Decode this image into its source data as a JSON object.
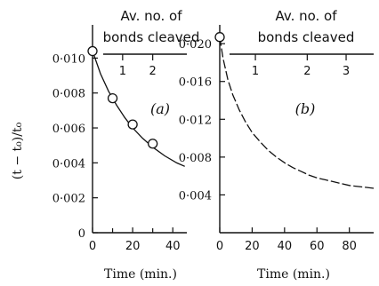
{
  "ylabel": "(t − t₀)/t₀",
  "chart_data": [
    {
      "type": "line",
      "panel_label": "(a)",
      "xlabel": "Time (min.)",
      "xlim": [
        0,
        47
      ],
      "ylim": [
        0,
        0.0118
      ],
      "x_ticks": [
        0,
        20,
        40
      ],
      "x_minor_ticks": [
        10,
        30
      ],
      "y_ticks": [
        0,
        0.002,
        0.004,
        0.006,
        0.008,
        0.01
      ],
      "y_tick_labels": [
        "0",
        "0·002",
        "0·004",
        "0·006",
        "0·008",
        "0·010"
      ],
      "top_axis": {
        "label_line1": "Av. no. of",
        "label_line2": "bonds cleaved",
        "ticks": [
          {
            "value": 1,
            "x": 15
          },
          {
            "value": 2,
            "x": 30
          }
        ]
      },
      "points": [
        {
          "x": 0,
          "y": 0.0104
        },
        {
          "x": 10,
          "y": 0.0077
        },
        {
          "x": 20,
          "y": 0.0062
        },
        {
          "x": 30,
          "y": 0.0051
        }
      ],
      "curve": [
        {
          "x": 0,
          "y": 0.0104
        },
        {
          "x": 4,
          "y": 0.0091
        },
        {
          "x": 8,
          "y": 0.0081
        },
        {
          "x": 12,
          "y": 0.0073
        },
        {
          "x": 16,
          "y": 0.0066
        },
        {
          "x": 20,
          "y": 0.006
        },
        {
          "x": 25,
          "y": 0.0054
        },
        {
          "x": 30,
          "y": 0.0049
        },
        {
          "x": 36,
          "y": 0.0044
        },
        {
          "x": 42,
          "y": 0.004
        },
        {
          "x": 46,
          "y": 0.0038
        }
      ]
    },
    {
      "type": "line",
      "panel_label": "(b)",
      "xlabel": "Time (min.)",
      "xlim": [
        0,
        95
      ],
      "ylim": [
        0,
        0.0218
      ],
      "x_ticks": [
        0,
        20,
        40,
        60,
        80
      ],
      "y_ticks": [
        0.004,
        0.008,
        0.012,
        0.016,
        0.02
      ],
      "y_tick_labels": [
        "0·004",
        "0·008",
        "0·012",
        "0·016",
        "0·020"
      ],
      "top_axis": {
        "label_line1": "Av. no. of",
        "label_line2": "bonds cleaved",
        "ticks": [
          {
            "value": 1,
            "x": 22
          },
          {
            "value": 2,
            "x": 54
          },
          {
            "value": 3,
            "x": 78
          }
        ]
      },
      "points": [
        {
          "x": 0,
          "y": 0.0207
        }
      ],
      "curve": [
        {
          "x": 0,
          "y": 0.0207
        },
        {
          "x": 2,
          "y": 0.0185
        },
        {
          "x": 5,
          "y": 0.0162
        },
        {
          "x": 8,
          "y": 0.0146
        },
        {
          "x": 12,
          "y": 0.013
        },
        {
          "x": 16,
          "y": 0.0117
        },
        {
          "x": 20,
          "y": 0.0106
        },
        {
          "x": 25,
          "y": 0.0096
        },
        {
          "x": 30,
          "y": 0.0087
        },
        {
          "x": 35,
          "y": 0.008
        },
        {
          "x": 40,
          "y": 0.0074
        },
        {
          "x": 45,
          "y": 0.0069
        },
        {
          "x": 50,
          "y": 0.0065
        },
        {
          "x": 55,
          "y": 0.0061
        },
        {
          "x": 60,
          "y": 0.0058
        },
        {
          "x": 65,
          "y": 0.0056
        },
        {
          "x": 70,
          "y": 0.0054
        },
        {
          "x": 75,
          "y": 0.0052
        },
        {
          "x": 80,
          "y": 0.005
        },
        {
          "x": 85,
          "y": 0.0049
        },
        {
          "x": 90,
          "y": 0.0048
        },
        {
          "x": 95,
          "y": 0.0047
        }
      ]
    }
  ]
}
